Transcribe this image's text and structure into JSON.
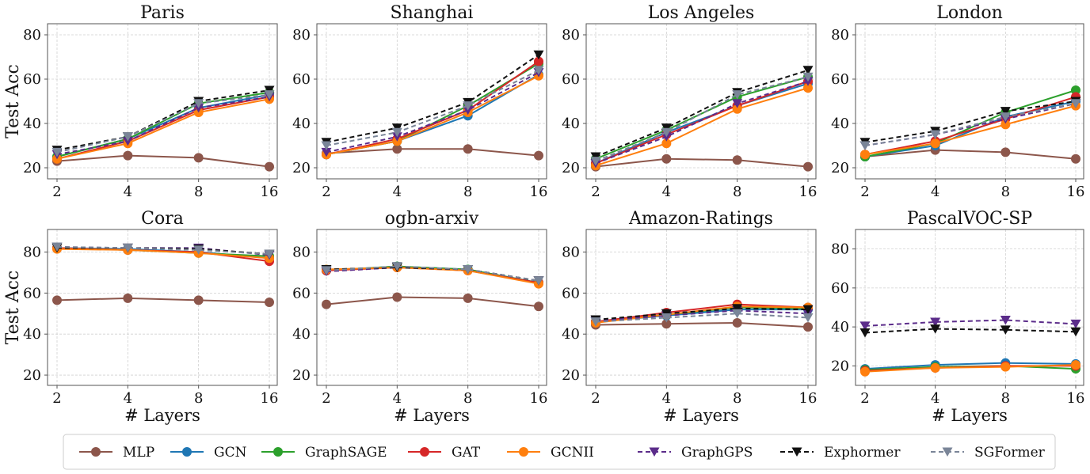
{
  "chart_data": [
    {
      "type": "line",
      "title": "Paris",
      "ylabel": "Test Acc",
      "xlabel": "",
      "x": [
        2,
        4,
        8,
        16
      ],
      "xscale": "log2",
      "ylim": [
        15,
        85
      ],
      "yticks": [
        20,
        40,
        60,
        80
      ],
      "grid": true,
      "series": [
        {
          "name": "MLP",
          "values": [
            23,
            25.5,
            24.5,
            20.5
          ]
        },
        {
          "name": "GCN",
          "values": [
            25,
            33,
            47,
            53
          ]
        },
        {
          "name": "GraphSAGE",
          "values": [
            25,
            33,
            49,
            54
          ]
        },
        {
          "name": "GAT",
          "values": [
            24,
            32,
            46,
            52
          ]
        },
        {
          "name": "GCNII",
          "values": [
            24,
            31,
            45,
            51
          ]
        },
        {
          "name": "GraphGPS",
          "values": [
            26,
            32,
            47,
            52
          ]
        },
        {
          "name": "Exphormer",
          "values": [
            28,
            34,
            50,
            55
          ]
        },
        {
          "name": "SGFormer",
          "values": [
            27,
            34,
            49,
            53
          ]
        }
      ]
    },
    {
      "type": "line",
      "title": "Shanghai",
      "ylabel": "",
      "xlabel": "",
      "x": [
        2,
        4,
        8,
        16
      ],
      "xscale": "log2",
      "ylim": [
        15,
        85
      ],
      "yticks": [
        20,
        40,
        60,
        80
      ],
      "grid": true,
      "series": [
        {
          "name": "MLP",
          "values": [
            26.5,
            28.5,
            28.5,
            25.5
          ]
        },
        {
          "name": "GCN",
          "values": [
            26,
            32,
            43.5,
            62
          ]
        },
        {
          "name": "GraphSAGE",
          "values": [
            26,
            32,
            48,
            67
          ]
        },
        {
          "name": "GAT",
          "values": [
            26,
            33,
            46,
            68
          ]
        },
        {
          "name": "GCNII",
          "values": [
            26,
            32,
            45,
            61.5
          ]
        },
        {
          "name": "GraphGPS",
          "values": [
            27,
            34,
            46,
            63
          ]
        },
        {
          "name": "Exphormer",
          "values": [
            31.5,
            38,
            49.5,
            71
          ]
        },
        {
          "name": "SGFormer",
          "values": [
            30,
            36,
            48,
            64
          ]
        }
      ]
    },
    {
      "type": "line",
      "title": "Los Angeles",
      "ylabel": "",
      "xlabel": "",
      "x": [
        2,
        4,
        8,
        16
      ],
      "xscale": "log2",
      "ylim": [
        15,
        85
      ],
      "yticks": [
        20,
        40,
        60,
        80
      ],
      "grid": true,
      "series": [
        {
          "name": "MLP",
          "values": [
            20.5,
            24,
            23.5,
            20.5
          ]
        },
        {
          "name": "GCN",
          "values": [
            22,
            36,
            48,
            58
          ]
        },
        {
          "name": "GraphSAGE",
          "values": [
            24,
            37,
            52,
            61
          ]
        },
        {
          "name": "GAT",
          "values": [
            22,
            35,
            48,
            59
          ]
        },
        {
          "name": "GCNII",
          "values": [
            21,
            31,
            46.5,
            56
          ]
        },
        {
          "name": "GraphGPS",
          "values": [
            22,
            34,
            49,
            59
          ]
        },
        {
          "name": "Exphormer",
          "values": [
            25,
            38,
            54,
            64
          ]
        },
        {
          "name": "SGFormer",
          "values": [
            23,
            36,
            53,
            61
          ]
        }
      ]
    },
    {
      "type": "line",
      "title": "London",
      "ylabel": "",
      "xlabel": "",
      "x": [
        2,
        4,
        8,
        16
      ],
      "xscale": "log2",
      "ylim": [
        15,
        85
      ],
      "yticks": [
        20,
        40,
        60,
        80
      ],
      "grid": true,
      "series": [
        {
          "name": "MLP",
          "values": [
            25,
            28,
            27,
            24
          ]
        },
        {
          "name": "GCN",
          "values": [
            25,
            30,
            43,
            50
          ]
        },
        {
          "name": "GraphSAGE",
          "values": [
            25,
            31,
            45,
            55
          ]
        },
        {
          "name": "GAT",
          "values": [
            26,
            32,
            42,
            52
          ]
        },
        {
          "name": "GCNII",
          "values": [
            26,
            31,
            39.5,
            48
          ]
        },
        {
          "name": "GraphGPS",
          "values": [
            30,
            35,
            42,
            49
          ]
        },
        {
          "name": "Exphormer",
          "values": [
            31.5,
            36.5,
            45.5,
            50
          ]
        },
        {
          "name": "SGFormer",
          "values": [
            30,
            35,
            43,
            49
          ]
        }
      ]
    },
    {
      "type": "line",
      "title": "Cora",
      "ylabel": "Test Acc",
      "xlabel": "# Layers",
      "x": [
        2,
        4,
        8,
        16
      ],
      "xscale": "log2",
      "ylim": [
        15,
        91
      ],
      "yticks": [
        20,
        40,
        60,
        80
      ],
      "grid": true,
      "series": [
        {
          "name": "MLP",
          "values": [
            56.5,
            57.5,
            56.5,
            55.5
          ]
        },
        {
          "name": "GCN",
          "values": [
            82,
            81.5,
            80,
            77
          ]
        },
        {
          "name": "GraphSAGE",
          "values": [
            82,
            81,
            79.5,
            78
          ]
        },
        {
          "name": "GAT",
          "values": [
            82,
            81,
            80,
            75.5
          ]
        },
        {
          "name": "GCNII",
          "values": [
            81.5,
            81,
            79.5,
            77
          ]
        },
        {
          "name": "GraphGPS",
          "values": [
            82.5,
            82,
            82,
            78.5
          ]
        },
        {
          "name": "Exphormer",
          "values": [
            82,
            82,
            81.5,
            79
          ]
        },
        {
          "name": "SGFormer",
          "values": [
            82.5,
            82,
            81,
            79
          ]
        }
      ]
    },
    {
      "type": "line",
      "title": "ogbn-arxiv",
      "ylabel": "",
      "xlabel": "# Layers",
      "x": [
        2,
        4,
        8,
        16
      ],
      "xscale": "log2",
      "ylim": [
        15,
        91
      ],
      "yticks": [
        20,
        40,
        60,
        80
      ],
      "grid": true,
      "series": [
        {
          "name": "MLP",
          "values": [
            54.5,
            58,
            57.5,
            53.5
          ]
        },
        {
          "name": "GCN",
          "values": [
            71,
            73,
            71.5,
            65
          ]
        },
        {
          "name": "GraphSAGE",
          "values": [
            71,
            73,
            71.5,
            65
          ]
        },
        {
          "name": "GAT",
          "values": [
            71,
            72.5,
            71,
            65
          ]
        },
        {
          "name": "GCNII",
          "values": [
            71.5,
            72.5,
            71,
            64.5
          ]
        },
        {
          "name": "GraphGPS",
          "values": [
            70.5,
            72.5,
            71.5,
            66
          ]
        },
        {
          "name": "Exphormer",
          "values": [
            71.5,
            72.5,
            71.5,
            66
          ]
        },
        {
          "name": "SGFormer",
          "values": [
            71,
            73,
            71.5,
            66
          ]
        }
      ]
    },
    {
      "type": "line",
      "title": "Amazon-Ratings",
      "ylabel": "",
      "xlabel": "# Layers",
      "x": [
        2,
        4,
        8,
        16
      ],
      "xscale": "log2",
      "ylim": [
        15,
        91
      ],
      "yticks": [
        20,
        40,
        60,
        80
      ],
      "grid": true,
      "series": [
        {
          "name": "MLP",
          "values": [
            44.5,
            45,
            45.5,
            43.5
          ]
        },
        {
          "name": "GCN",
          "values": [
            46,
            49,
            52,
            52
          ]
        },
        {
          "name": "GraphSAGE",
          "values": [
            46,
            49.5,
            53,
            52.5
          ]
        },
        {
          "name": "GAT",
          "values": [
            46,
            50.5,
            54.5,
            53
          ]
        },
        {
          "name": "GCNII",
          "values": [
            45.5,
            49.5,
            53.5,
            53
          ]
        },
        {
          "name": "GraphGPS",
          "values": [
            46.5,
            49,
            51.5,
            50
          ]
        },
        {
          "name": "Exphormer",
          "values": [
            47,
            50,
            52.5,
            52
          ]
        },
        {
          "name": "SGFormer",
          "values": [
            46,
            48,
            50,
            48
          ]
        }
      ]
    },
    {
      "type": "line",
      "title": "PascalVOC-SP",
      "ylabel": "",
      "xlabel": "# Layers",
      "x": [
        2,
        4,
        8,
        16
      ],
      "xscale": "log2",
      "ylim": [
        10,
        90
      ],
      "yticks": [
        20,
        40,
        60,
        80
      ],
      "grid": true,
      "series": [
        {
          "name": "GCN",
          "values": [
            18.5,
            20.5,
            21.5,
            21
          ]
        },
        {
          "name": "GraphSAGE",
          "values": [
            18,
            19.5,
            20,
            18.5
          ]
        },
        {
          "name": "GAT",
          "values": [
            17.5,
            19,
            20,
            20
          ]
        },
        {
          "name": "GCNII",
          "values": [
            17,
            19,
            19.5,
            20.5
          ]
        },
        {
          "name": "GraphGPS",
          "values": [
            40.5,
            42.5,
            43.5,
            41.5
          ]
        },
        {
          "name": "Exphormer",
          "values": [
            37,
            39,
            38.5,
            37.5
          ]
        }
      ]
    }
  ],
  "legend": {
    "placement": "bottom",
    "entries": [
      {
        "name": "MLP",
        "color": "#8c564b",
        "marker": "circle",
        "dash": false
      },
      {
        "name": "GCN",
        "color": "#1f77b4",
        "marker": "circle",
        "dash": false
      },
      {
        "name": "GraphSAGE",
        "color": "#2ca02c",
        "marker": "circle",
        "dash": false
      },
      {
        "name": "GAT",
        "color": "#d62728",
        "marker": "circle",
        "dash": false
      },
      {
        "name": "GCNII",
        "color": "#ff7f0e",
        "marker": "circle",
        "dash": false
      },
      {
        "name": "GraphGPS",
        "color": "#5b2c8a",
        "marker": "triangle-down",
        "dash": true
      },
      {
        "name": "Exphormer",
        "color": "#111111",
        "marker": "triangle-down",
        "dash": true
      },
      {
        "name": "SGFormer",
        "color": "#7a8598",
        "marker": "triangle-down",
        "dash": true
      }
    ]
  }
}
